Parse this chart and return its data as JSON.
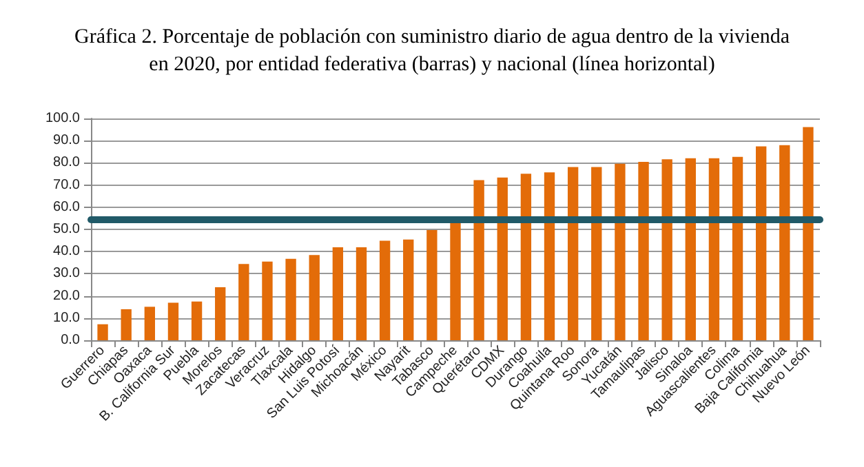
{
  "chart_data": {
    "type": "bar",
    "title": "Gráfica 2. Porcentaje de población con suministro diario de agua dentro de la vivienda\nen 2020, por entidad federativa (barras) y nacional (línea horizontal)",
    "categories": [
      "Guerrero",
      "Chiapas",
      "Oaxaca",
      "B. California Sur",
      "Puebla",
      "Morelos",
      "Zacatecas",
      "Veracruz",
      "Tlaxcala",
      "Hidalgo",
      "San Luis Potosí",
      "Michoacán",
      "México",
      "Nayarit",
      "Tabasco",
      "Campeche",
      "Querétaro",
      "CDMX",
      "Durango",
      "Coahuila",
      "Quintana Roo",
      "Sonora",
      "Yucatán",
      "Tamaulipas",
      "Jalisco",
      "Sinaloa",
      "Aguascalientes",
      "Colima",
      "Baja California",
      "Chihuahua",
      "Nuevo León"
    ],
    "values": [
      7.2,
      14.0,
      15.1,
      16.9,
      17.5,
      23.9,
      34.4,
      35.5,
      36.7,
      38.4,
      41.9,
      41.9,
      44.9,
      45.4,
      49.7,
      53.4,
      72.2,
      73.4,
      75.1,
      75.7,
      78.1,
      78.1,
      79.6,
      80.4,
      81.6,
      82.1,
      82.1,
      82.7,
      87.4,
      88.0,
      96.1
    ],
    "color": "#e36c09",
    "ylim": [
      0,
      100
    ],
    "yticks": [
      {
        "value": 0,
        "label": "0.0"
      },
      {
        "value": 10,
        "label": "10.0"
      },
      {
        "value": 20,
        "label": "20.0"
      },
      {
        "value": 30,
        "label": "30.0"
      },
      {
        "value": 40,
        "label": "40.0"
      },
      {
        "value": 50,
        "label": "50.0"
      },
      {
        "value": 60,
        "label": "60.0"
      },
      {
        "value": 70,
        "label": "70.0"
      },
      {
        "value": 80,
        "label": "80.0"
      },
      {
        "value": 90,
        "label": "90.0"
      },
      {
        "value": 100,
        "label": "100.0"
      }
    ],
    "ref_lines": [
      {
        "axis": "y",
        "value": 54.8,
        "color": "#215a68"
      }
    ],
    "grid": "y"
  }
}
